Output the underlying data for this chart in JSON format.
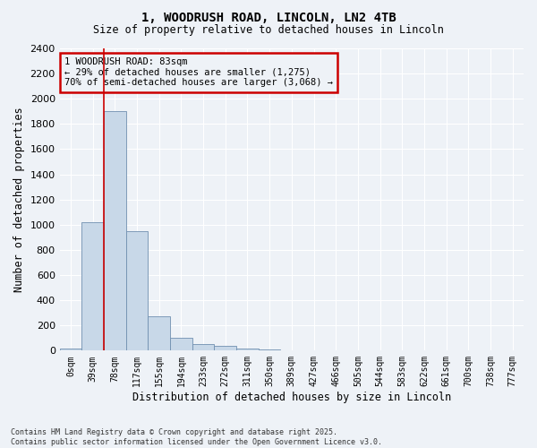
{
  "title_line1": "1, WOODRUSH ROAD, LINCOLN, LN2 4TB",
  "title_line2": "Size of property relative to detached houses in Lincoln",
  "xlabel": "Distribution of detached houses by size in Lincoln",
  "ylabel": "Number of detached properties",
  "categories": [
    "0sqm",
    "39sqm",
    "78sqm",
    "117sqm",
    "155sqm",
    "194sqm",
    "233sqm",
    "272sqm",
    "311sqm",
    "350sqm",
    "389sqm",
    "427sqm",
    "466sqm",
    "505sqm",
    "544sqm",
    "583sqm",
    "622sqm",
    "661sqm",
    "700sqm",
    "738sqm",
    "777sqm"
  ],
  "bar_values": [
    15,
    1020,
    1900,
    950,
    270,
    100,
    55,
    40,
    20,
    8,
    3,
    0,
    0,
    0,
    0,
    0,
    0,
    0,
    0,
    0,
    0
  ],
  "bar_color": "#c8d8e8",
  "bar_edge_color": "#7090b0",
  "vline_color": "#cc0000",
  "ylim": [
    0,
    2400
  ],
  "yticks": [
    0,
    200,
    400,
    600,
    800,
    1000,
    1200,
    1400,
    1600,
    1800,
    2000,
    2200,
    2400
  ],
  "annotation_text": "1 WOODRUSH ROAD: 83sqm\n← 29% of detached houses are smaller (1,275)\n70% of semi-detached houses are larger (3,068) →",
  "annotation_box_color": "#cc0000",
  "bg_color": "#eef2f7",
  "grid_color": "#ffffff",
  "footer": "Contains HM Land Registry data © Crown copyright and database right 2025.\nContains public sector information licensed under the Open Government Licence v3.0."
}
